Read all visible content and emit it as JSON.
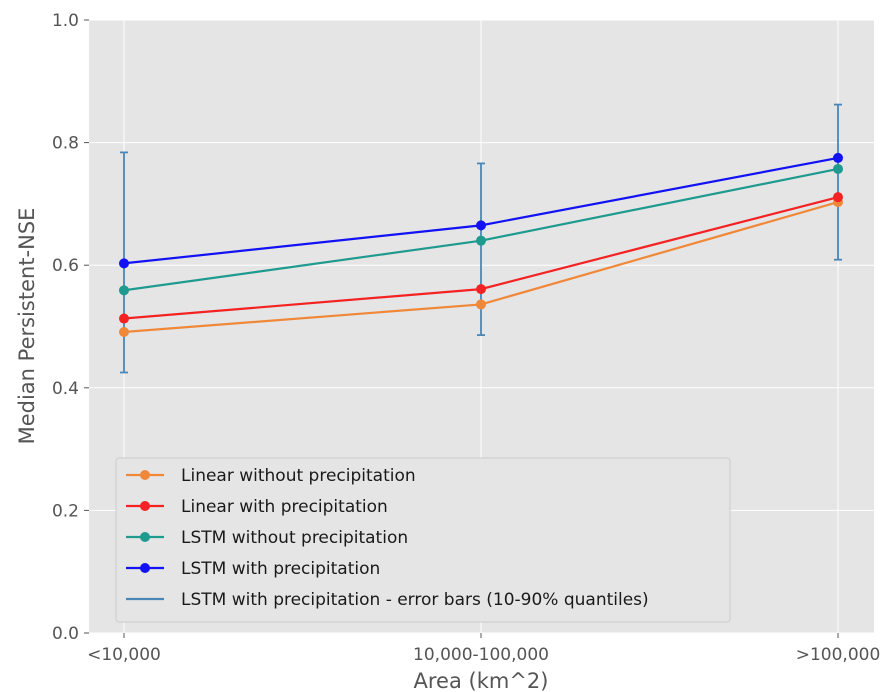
{
  "chart_data": {
    "type": "line",
    "title": "",
    "xlabel": "Area (km^2)",
    "ylabel": "Median Persistent-NSE",
    "categories": [
      "<10,000",
      "10,000-100,000",
      ">100,000"
    ],
    "ylim": [
      0.0,
      1.0
    ],
    "yticks": [
      "0.0",
      "0.2",
      "0.4",
      "0.6",
      "0.8",
      "1.0"
    ],
    "grid": true,
    "legend_position": "lower-left",
    "series": [
      {
        "name": "Linear without precipitation",
        "color": "#f0883a",
        "values": [
          0.491,
          0.536,
          0.703
        ]
      },
      {
        "name": "Linear with precipitation",
        "color": "#f42222",
        "values": [
          0.513,
          0.561,
          0.711
        ]
      },
      {
        "name": "LSTM without precipitation",
        "color": "#1f9a8e",
        "values": [
          0.559,
          0.64,
          0.757
        ]
      },
      {
        "name": "LSTM with precipitation",
        "color": "#1212f5",
        "values": [
          0.603,
          0.665,
          0.775
        ]
      }
    ],
    "error_bars": {
      "name": "LSTM with precipitation - error bars (10-90% quantiles)",
      "color": "#4a87b8",
      "lower": [
        0.425,
        0.486,
        0.609
      ],
      "upper": [
        0.784,
        0.766,
        0.862
      ]
    }
  }
}
